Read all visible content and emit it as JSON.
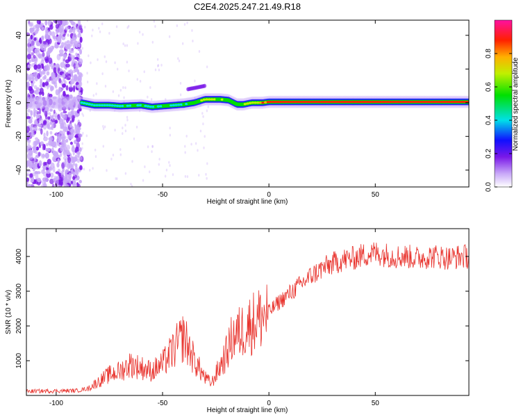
{
  "title": "C2E4.2025.247.21.49.R18",
  "chart_data": [
    {
      "type": "heatmap",
      "xlabel": "Height of straight line (km)",
      "ylabel": "Frequency (Hz)",
      "xlim": [
        -114,
        94
      ],
      "ylim": [
        -50,
        49
      ],
      "xticks": [
        -100,
        -50,
        0,
        50
      ],
      "yticks": [
        -40,
        -20,
        0,
        20,
        40
      ],
      "colorbar": {
        "label": "Normalized spectral amplitude",
        "range": [
          0,
          1
        ],
        "ticks": [
          "0.0",
          "0.2",
          "0.4",
          "0.6",
          "0.8"
        ],
        "tick_values": [
          0.0,
          0.2,
          0.4,
          0.6,
          0.8
        ]
      },
      "ridge": {
        "x": [
          -114,
          -88,
          -82,
          -75,
          -70,
          -60,
          -55,
          -50,
          -45,
          -40,
          -35,
          -30,
          -27,
          -23,
          -19,
          -15,
          -12,
          -8,
          -3,
          0,
          20,
          50,
          94
        ],
        "freq": [
          0,
          0,
          -1.5,
          -1.5,
          -2,
          -1.5,
          -2.5,
          -2,
          -1.5,
          -1,
          0,
          2,
          2,
          2,
          1.5,
          -1,
          -1,
          0,
          0,
          0.5,
          0.5,
          0.5,
          0.5
        ],
        "amplitude": [
          0.35,
          0.4,
          0.45,
          0.5,
          0.5,
          0.55,
          0.5,
          0.55,
          0.55,
          0.55,
          0.6,
          0.7,
          0.75,
          0.7,
          0.6,
          0.6,
          0.65,
          0.75,
          0.85,
          0.92,
          0.95,
          0.95,
          0.95
        ]
      },
      "noise_region_x": [
        -114,
        -88
      ],
      "secondary_feature": {
        "x": [
          -38,
          -30
        ],
        "freq": [
          8,
          10
        ]
      }
    },
    {
      "type": "line",
      "xlabel": "Height of straight line (km)",
      "ylabel": "SNR (10 * v/v)",
      "xlim": [
        -114,
        94
      ],
      "ylim": [
        0,
        4800
      ],
      "xticks": [
        -100,
        -50,
        0,
        50
      ],
      "yticks": [
        1000,
        2000,
        3000,
        4000
      ],
      "color": "#e8302a",
      "series": [
        {
          "x": [
            -114,
            -100,
            -90,
            -85,
            -80,
            -75,
            -70,
            -65,
            -60,
            -55,
            -50,
            -45,
            -40,
            -35,
            -30,
            -27,
            -25,
            -20,
            -17,
            -14,
            -10,
            -5,
            0,
            5,
            10,
            15,
            20,
            25,
            30,
            35,
            40,
            45,
            50,
            55,
            60,
            65,
            70,
            75,
            80,
            85,
            90,
            94
          ],
          "y": [
            120,
            130,
            140,
            200,
            400,
            600,
            700,
            900,
            800,
            700,
            900,
            1300,
            1700,
            1000,
            500,
            350,
            600,
            1200,
            1700,
            1800,
            2000,
            2200,
            2400,
            2700,
            2950,
            3200,
            3450,
            3650,
            3800,
            3900,
            3950,
            4050,
            4100,
            4050,
            4000,
            4000,
            3950,
            4000,
            4000,
            3950,
            4000,
            4000
          ]
        }
      ]
    }
  ]
}
